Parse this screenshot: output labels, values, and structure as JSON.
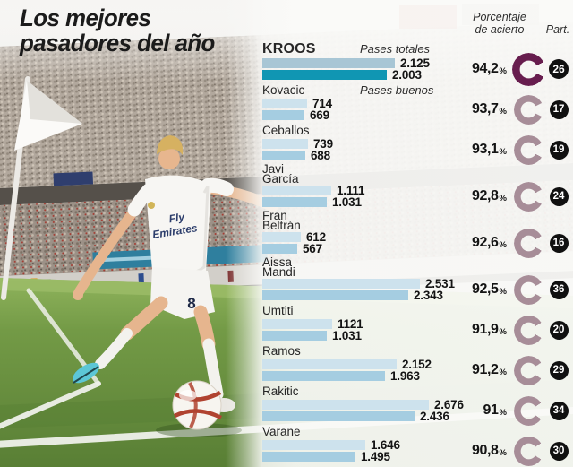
{
  "title": {
    "line1": "Los mejores",
    "line2": "pasadores del año"
  },
  "column_headers": {
    "accuracy_line1": "Porcentaje",
    "accuracy_line2": "de acierto",
    "participations": "Part."
  },
  "legend": {
    "total": "Pases totales",
    "good": "Pases buenos"
  },
  "photo": {
    "jersey_sponsor_line1": "Fly",
    "jersey_sponsor_line2": "Emirates",
    "shorts_number": "8"
  },
  "colors": {
    "bar_total": "#cde2ed",
    "bar_good": "#a5cde1",
    "kroos_total": "#a8c6d5",
    "kroos_good": "#1096b3",
    "ring": "#a78d98",
    "ring_highlight": "#671d4e",
    "badge_bg": "#101010",
    "badge_text": "#ffffff"
  },
  "chart_data": {
    "type": "bar",
    "orientation": "horizontal",
    "title": "Los mejores pasadores del año",
    "categories": [
      "Kroos",
      "Kovacic",
      "Ceballos",
      "Javi García",
      "Fran Beltrán",
      "Aissa Mandi",
      "Umtiti",
      "Ramos",
      "Rakitic",
      "Varane"
    ],
    "series": [
      {
        "name": "Pases totales",
        "values": [
          2125,
          714,
          739,
          1111,
          612,
          2531,
          1121,
          2152,
          2676,
          1646
        ]
      },
      {
        "name": "Pases buenos",
        "values": [
          2003,
          669,
          688,
          1031,
          567,
          2343,
          1031,
          1963,
          2436,
          1495
        ]
      }
    ],
    "accuracy_pct": [
      94.2,
      93.7,
      93.1,
      92.8,
      92.6,
      92.5,
      91.9,
      91.2,
      91,
      90.8
    ],
    "matches": [
      26,
      17,
      19,
      24,
      16,
      36,
      20,
      29,
      34,
      30
    ],
    "value_axis_max": 2700,
    "legend_position": "inline-first-rows",
    "grid": false
  },
  "display": {
    "names": [
      [
        "KROOS"
      ],
      [
        "Kovacic"
      ],
      [
        "Ceballos"
      ],
      [
        "Javi",
        "García"
      ],
      [
        "Fran",
        "Beltrán"
      ],
      [
        "Aissa",
        "Mandi"
      ],
      [
        "Umtiti"
      ],
      [
        "Ramos"
      ],
      [
        "Rakitic"
      ],
      [
        "Varane"
      ]
    ],
    "total_texts": [
      "2.125",
      "714",
      "739",
      "1.111",
      "612",
      "2.531",
      "1121",
      "2.152",
      "2.676",
      "1.646"
    ],
    "good_texts": [
      "2.003",
      "669",
      "688",
      "1.031",
      "567",
      "2.343",
      "1.031",
      "1.963",
      "2.436",
      "1.495"
    ],
    "accuracy_texts": [
      "94,2",
      "93,7",
      "93,1",
      "92,8",
      "92,6",
      "92,5",
      "91,9",
      "91,2",
      "91",
      "90,8"
    ],
    "matches_texts": [
      "26",
      "17",
      "19",
      "24",
      "16",
      "36",
      "20",
      "29",
      "34",
      "30"
    ],
    "highlight_index": 0
  }
}
